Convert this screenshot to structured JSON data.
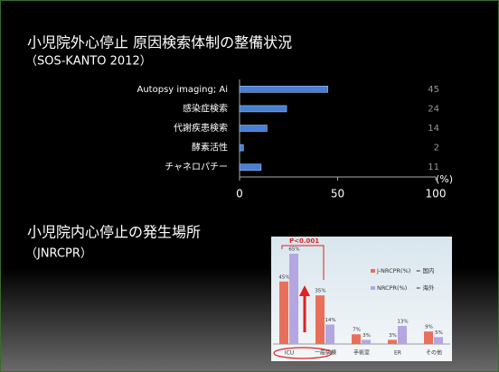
{
  "chart_data": [
    {
      "type": "hbar",
      "title": "小児院外心停止 原因検索体制の整備状況",
      "subtitle": "（SOS-KANTO 2012）",
      "categories": [
        "Autopsy imaging; Ai",
        "感染症検索",
        "代謝疾患検索",
        "酵素活性",
        "チャネロパチー"
      ],
      "values": [
        45,
        24,
        14,
        2,
        11
      ],
      "color": "#4a7fd4",
      "xlim": [
        0,
        100
      ],
      "xticks": [
        0,
        50,
        100
      ],
      "x_unit": "(%)"
    },
    {
      "type": "grouped_bar",
      "title": "小児院内心停止の発生場所",
      "subtitle": "（JNRCPR）",
      "annotation": "P<0.001",
      "categories": [
        "ICU",
        "一般病棟",
        "手術室",
        "ER",
        "その他"
      ],
      "series": [
        {
          "name": "J-NRCPR(%)",
          "note": "= 国内",
          "color": "#e8705a",
          "values": [
            45,
            35,
            7,
            3,
            9
          ],
          "value_labels": [
            "45%",
            "35%",
            "7%",
            "3%",
            "9%"
          ]
        },
        {
          "name": "NRCPR(%)",
          "note": "= 海外",
          "color": "#b4a6e0",
          "values": [
            65,
            14,
            3,
            13,
            5
          ],
          "value_labels": [
            "65%",
            "14%",
            "3%",
            "13%",
            "5%"
          ]
        }
      ]
    }
  ]
}
